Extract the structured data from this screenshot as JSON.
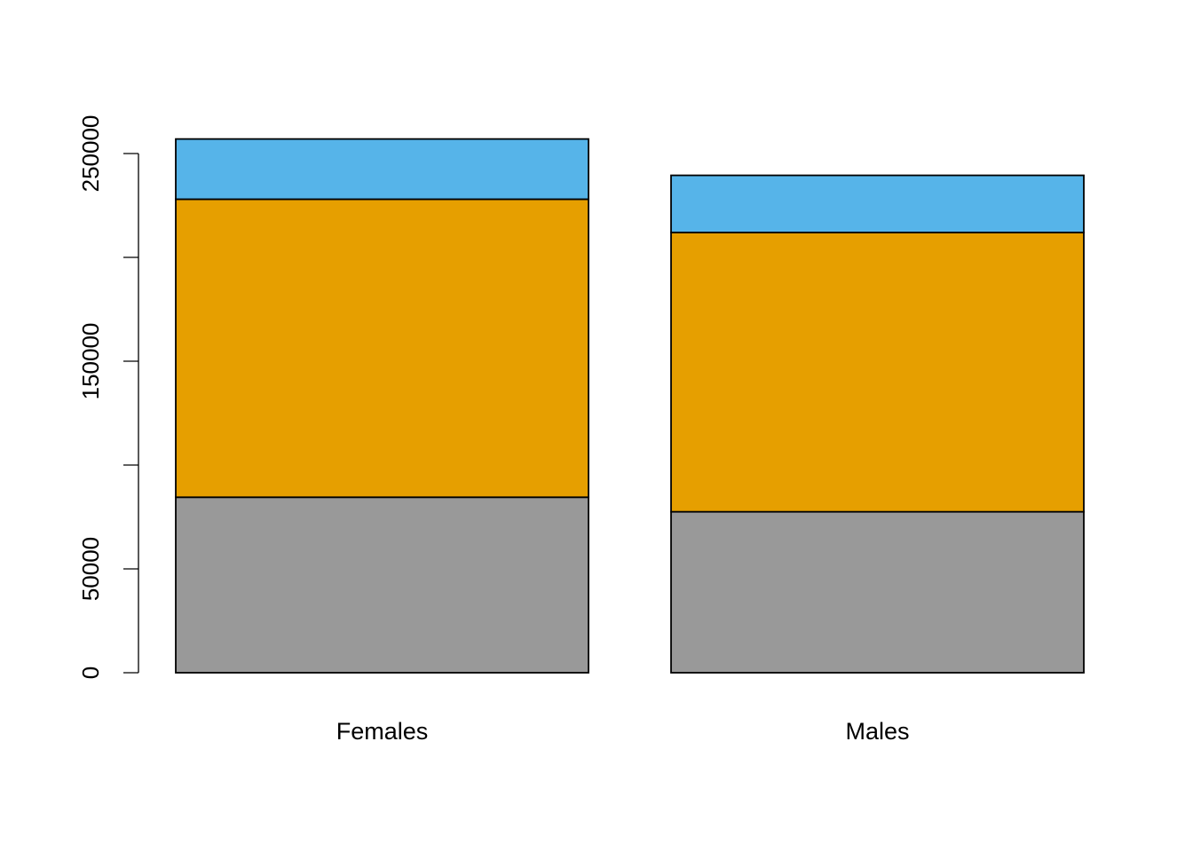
{
  "chart_data": {
    "type": "bar",
    "stacked": true,
    "categories": [
      "Females",
      "Males"
    ],
    "series": [
      {
        "values": [
          84500,
          77500
        ],
        "color": "#999999"
      },
      {
        "values": [
          143500,
          134500
        ],
        "color": "#E69F00"
      },
      {
        "values": [
          29000,
          27500
        ],
        "color": "#56B4E9"
      }
    ],
    "title": "",
    "xlabel": "",
    "ylabel": "",
    "ylim": [
      0,
      250000
    ],
    "yticks": [
      0,
      50000,
      100000,
      150000,
      200000,
      250000
    ],
    "ytick_labels": [
      "0",
      "50000",
      "",
      "150000",
      "",
      "250000"
    ],
    "grid": false,
    "legend": "none"
  }
}
